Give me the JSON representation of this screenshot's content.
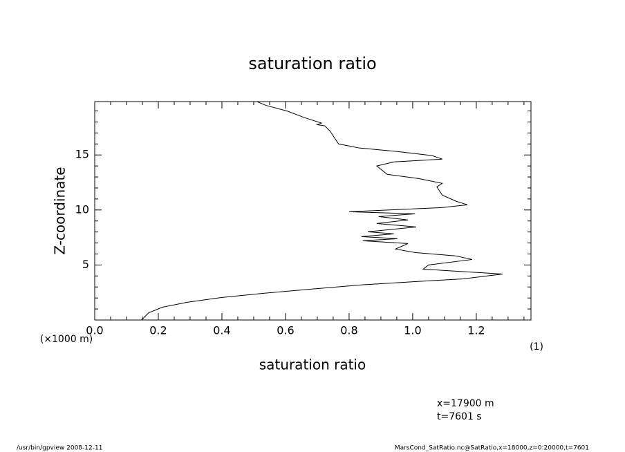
{
  "chart_data": {
    "type": "line",
    "title": "saturation ratio",
    "xlabel": "saturation ratio",
    "xunit": "(1)",
    "ylabel": "Z-coordinate",
    "yunit": "(×1000 m)",
    "annotations": [
      "x=17900  m",
      "t=7601  s"
    ],
    "footer_left": "/usr/bin/gpview   2008-12-11",
    "footer_right": "MarsCond_SatRatio.nc@SatRatio,x=18000,z=0:20000,t=7601",
    "color": "#000000",
    "xlim": [
      0,
      1.372
    ],
    "ylim": [
      0,
      19.85
    ],
    "xticks": [
      {
        "value": 0,
        "label": "0.0"
      },
      0.2,
      0.4,
      0.6,
      0.8,
      {
        "value": 1,
        "label": "1.0"
      },
      1.2
    ],
    "yticks": [
      5,
      10,
      15
    ],
    "xminorticks": [
      0.05,
      0.1,
      0.15,
      0.25,
      0.3,
      0.35,
      0.45,
      0.5,
      0.55,
      0.65,
      0.7,
      0.75,
      0.85,
      0.9,
      0.95,
      1.05,
      1.1,
      1.15,
      1.25,
      1.3,
      1.35
    ],
    "yminorticks": [
      1,
      2,
      3,
      4,
      6,
      7,
      8,
      9,
      11,
      12,
      13,
      14,
      16,
      17,
      18,
      19
    ],
    "x": [
      0.148,
      0.17,
      0.213,
      0.289,
      0.398,
      0.528,
      0.68,
      0.833,
      1.007,
      1.159,
      1.283,
      1.033,
      1.05,
      1.187,
      1.137,
      1.007,
      0.946,
      0.985,
      0.843,
      0.952,
      0.839,
      0.941,
      0.859,
      1.011,
      0.887,
      0.985,
      0.893,
      1.007,
      0.8,
      1.093,
      1.172,
      1.137,
      1.093,
      1.076,
      1.093,
      1.017,
      0.92,
      0.887,
      0.941,
      1.093,
      1.061,
      0.952,
      0.833,
      0.767,
      0.752,
      0.741,
      0.724,
      0.7,
      0.713,
      0.659,
      0.604,
      0.539,
      0.511
    ],
    "values": [
      0.03,
      0.66,
      1.16,
      1.6,
      2.04,
      2.42,
      2.8,
      3.18,
      3.49,
      3.74,
      4.18,
      4.62,
      5.0,
      5.5,
      5.82,
      6.13,
      6.45,
      6.95,
      7.2,
      7.39,
      7.58,
      7.83,
      8.02,
      8.46,
      8.77,
      9.09,
      9.4,
      9.65,
      9.84,
      10.22,
      10.47,
      10.79,
      11.35,
      12.1,
      12.42,
      12.86,
      13.24,
      14.0,
      14.37,
      14.62,
      14.94,
      15.31,
      15.63,
      16.0,
      16.64,
      17.14,
      17.64,
      17.75,
      17.9,
      18.4,
      19.0,
      19.5,
      19.84
    ]
  }
}
